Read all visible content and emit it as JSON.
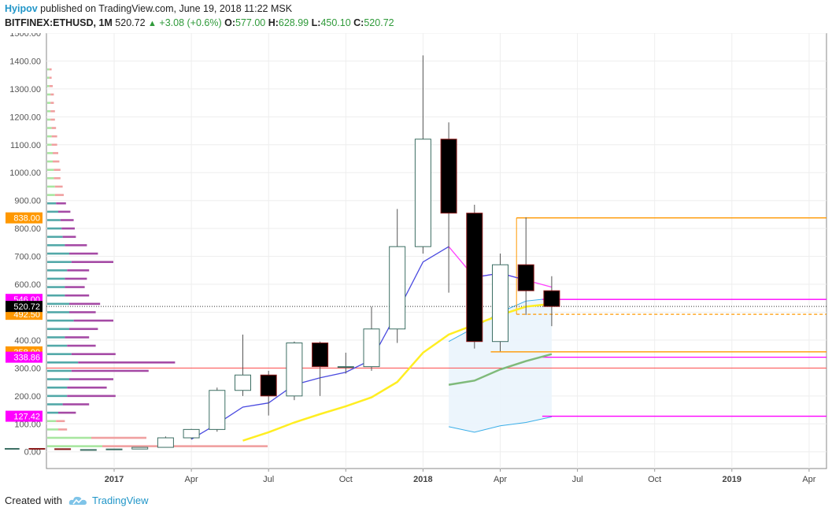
{
  "header": {
    "author": "Hyipov",
    "published": "published on TradingView.com, June 19, 2018 11:22 MSK",
    "symbol": "BITFINEX:ETHUSD, 1M",
    "last": "520.72",
    "change": "+3.08 (+0.6%)",
    "o_label": "O:",
    "o_value": "577.00",
    "h_label": "H:",
    "h_value": "628.99",
    "l_label": "L:",
    "l_value": "450.10",
    "c_label": "C:",
    "c_value": "520.72"
  },
  "footer": {
    "created_with": "Created with",
    "brand": "TradingView",
    "logo_icon": "tradingview-cloud-icon"
  },
  "colors": {
    "up_body": "#ffffff",
    "up_border": "#3c6e63",
    "down_body": "#000000",
    "down_border": "#8b1a1a",
    "ma_blue": "#4a4ae0",
    "ma_magenta": "#ff40ff",
    "ma_yellow": "#ffee22",
    "ma_green": "#7fba7a",
    "band_blue": "#3aaee8",
    "band_fill": "#eaf4fc",
    "level_orange": "#ff9800",
    "level_magenta": "#ff00ff",
    "level_red": "#ff4b4b",
    "vp_up": "#52a8a8",
    "vp_down": "#a54aa5",
    "vp_up_light": "#a8e6a0",
    "vp_down_light": "#f0a0a0"
  },
  "chart_data": {
    "type": "candlestick",
    "symbol": "BITFINEX:ETHUSD",
    "timeframe": "1M",
    "ylim": [
      -60,
      1500
    ],
    "y_ticks": [
      0,
      100,
      200,
      300,
      400,
      500,
      600,
      700,
      800,
      900,
      1000,
      1100,
      1200,
      1300,
      1400,
      1500
    ],
    "y_tick_labels": [
      "0.00",
      "100.00",
      "200.00",
      "300.00",
      "400.00",
      "500.00",
      "600.00",
      "700.00",
      "800.00",
      "900.00",
      "1000.00",
      "1100.00",
      "1200.00",
      "1300.00",
      "1400.00",
      "1500.00"
    ],
    "x_ticks": [
      {
        "label": "2017",
        "month": "2017-01",
        "bold": true
      },
      {
        "label": "Apr",
        "month": "2017-04",
        "bold": false
      },
      {
        "label": "Jul",
        "month": "2017-07",
        "bold": false
      },
      {
        "label": "Oct",
        "month": "2017-10",
        "bold": false
      },
      {
        "label": "2018",
        "month": "2018-01",
        "bold": true
      },
      {
        "label": "Apr",
        "month": "2018-04",
        "bold": false
      },
      {
        "label": "Jul",
        "month": "2018-07",
        "bold": false
      },
      {
        "label": "Oct",
        "month": "2018-10",
        "bold": false
      },
      {
        "label": "2019",
        "month": "2019-01",
        "bold": true
      },
      {
        "label": "Apr",
        "month": "2019-04",
        "bold": false
      }
    ],
    "candles": [
      {
        "month": "2016-06",
        "open": 12,
        "high": 14,
        "low": 10,
        "close": 12
      },
      {
        "month": "2016-07",
        "open": 12,
        "high": 14,
        "low": 10,
        "close": 11
      },
      {
        "month": "2016-08",
        "open": 11,
        "high": 13,
        "low": 9,
        "close": 10
      },
      {
        "month": "2016-09",
        "open": 10,
        "high": 13,
        "low": 9,
        "close": 12
      },
      {
        "month": "2016-10",
        "open": 12,
        "high": 13,
        "low": 10,
        "close": 11
      },
      {
        "month": "2016-11",
        "open": 11,
        "high": 12,
        "low": 8,
        "close": 8
      },
      {
        "month": "2016-12",
        "open": 8,
        "high": 9,
        "low": 6,
        "close": 8
      },
      {
        "month": "2017-01",
        "open": 8,
        "high": 11,
        "low": 8,
        "close": 10
      },
      {
        "month": "2017-02",
        "open": 10,
        "high": 16,
        "low": 10,
        "close": 16
      },
      {
        "month": "2017-03",
        "open": 16,
        "high": 55,
        "low": 15,
        "close": 50
      },
      {
        "month": "2017-04",
        "open": 50,
        "high": 82,
        "low": 45,
        "close": 80
      },
      {
        "month": "2017-05",
        "open": 80,
        "high": 230,
        "low": 72,
        "close": 220
      },
      {
        "month": "2017-06",
        "open": 220,
        "high": 420,
        "low": 200,
        "close": 275
      },
      {
        "month": "2017-07",
        "open": 275,
        "high": 290,
        "low": 130,
        "close": 200
      },
      {
        "month": "2017-08",
        "open": 200,
        "high": 395,
        "low": 185,
        "close": 390
      },
      {
        "month": "2017-09",
        "open": 390,
        "high": 395,
        "low": 200,
        "close": 305
      },
      {
        "month": "2017-10",
        "open": 305,
        "high": 355,
        "low": 280,
        "close": 305
      },
      {
        "month": "2017-11",
        "open": 305,
        "high": 520,
        "low": 290,
        "close": 440
      },
      {
        "month": "2017-12",
        "open": 440,
        "high": 870,
        "low": 390,
        "close": 735
      },
      {
        "month": "2018-01",
        "open": 735,
        "high": 1420,
        "low": 710,
        "close": 1120
      },
      {
        "month": "2018-02",
        "open": 1120,
        "high": 1180,
        "low": 570,
        "close": 855
      },
      {
        "month": "2018-03",
        "open": 855,
        "high": 885,
        "low": 370,
        "close": 395
      },
      {
        "month": "2018-04",
        "open": 395,
        "high": 710,
        "low": 360,
        "close": 670
      },
      {
        "month": "2018-05",
        "open": 670,
        "high": 840,
        "low": 490,
        "close": 577
      },
      {
        "month": "2018-06",
        "open": 577,
        "high": 628.99,
        "low": 450.1,
        "close": 520.72
      }
    ],
    "moving_averages": [
      {
        "color": "ma_blue",
        "points": [
          [
            "2017-04",
            45
          ],
          [
            "2017-05",
            100
          ],
          [
            "2017-06",
            160
          ],
          [
            "2017-07",
            175
          ],
          [
            "2017-08",
            240
          ],
          [
            "2017-09",
            265
          ],
          [
            "2017-10",
            285
          ],
          [
            "2017-11",
            330
          ],
          [
            "2017-12",
            500
          ],
          [
            "2018-01",
            680
          ],
          [
            "2018-02",
            735
          ]
        ]
      },
      {
        "color": "ma_magenta",
        "points": [
          [
            "2018-02",
            735
          ],
          [
            "2018-03",
            625
          ],
          [
            "2018-04",
            640
          ],
          [
            "2018-05",
            615
          ],
          [
            "2018-06",
            590
          ]
        ]
      },
      {
        "color": "ma_blue",
        "points": [
          [
            "2018-03",
            625
          ],
          [
            "2018-04",
            640
          ],
          [
            "2018-05",
            615
          ]
        ]
      },
      {
        "color": "ma_yellow",
        "width": 2.5,
        "points": [
          [
            "2017-06",
            40
          ],
          [
            "2017-07",
            70
          ],
          [
            "2017-08",
            105
          ],
          [
            "2017-09",
            135
          ],
          [
            "2017-10",
            163
          ],
          [
            "2017-11",
            195
          ],
          [
            "2017-12",
            250
          ],
          [
            "2018-01",
            355
          ],
          [
            "2018-02",
            420
          ],
          [
            "2018-03",
            455
          ],
          [
            "2018-04",
            490
          ],
          [
            "2018-05",
            520
          ],
          [
            "2018-06",
            530
          ]
        ]
      },
      {
        "color": "ma_green",
        "width": 2.5,
        "points": [
          [
            "2018-02",
            240
          ],
          [
            "2018-03",
            255
          ],
          [
            "2018-04",
            295
          ],
          [
            "2018-05",
            325
          ],
          [
            "2018-06",
            350
          ]
        ]
      }
    ],
    "band": {
      "upper": [
        [
          "2018-02",
          395
        ],
        [
          "2018-03",
          445
        ],
        [
          "2018-04",
          500
        ],
        [
          "2018-05",
          540
        ],
        [
          "2018-06",
          550
        ]
      ],
      "lower": [
        [
          "2018-02",
          90
        ],
        [
          "2018-03",
          70
        ],
        [
          "2018-04",
          93
        ],
        [
          "2018-05",
          105
        ],
        [
          "2018-06",
          125
        ]
      ]
    },
    "levels": [
      {
        "value": 838.0,
        "label": "838.00",
        "color": "level_orange",
        "style": "solid",
        "from": "2018-05"
      },
      {
        "value": 546.0,
        "label": "546.00",
        "color": "level_magenta",
        "style": "solid",
        "from": "2018-06"
      },
      {
        "value": 492.5,
        "label": "492.50",
        "color": "level_orange",
        "style": "dashed",
        "from": "2018-05"
      },
      {
        "value": 358.0,
        "label": "358.00",
        "color": "level_orange",
        "style": "solid",
        "from": "2018-04"
      },
      {
        "value": 338.86,
        "label": "338.86",
        "color": "level_magenta",
        "style": "solid",
        "from": "2018-06"
      },
      {
        "value": 300,
        "label": "",
        "color": "level_red",
        "style": "solid",
        "from": "start"
      },
      {
        "value": 127.42,
        "label": "127.42",
        "color": "level_magenta",
        "style": "solid",
        "from": "2018-06"
      }
    ],
    "last_price": {
      "value": 520.72,
      "label": "520.72"
    },
    "volume_profile": {
      "bins": [
        {
          "price": 1370,
          "up": 2,
          "down": 2
        },
        {
          "price": 1340,
          "up": 2,
          "down": 2
        },
        {
          "price": 1310,
          "up": 2,
          "down": 3
        },
        {
          "price": 1280,
          "up": 3,
          "down": 3
        },
        {
          "price": 1250,
          "up": 3,
          "down": 3
        },
        {
          "price": 1220,
          "up": 3,
          "down": 4
        },
        {
          "price": 1190,
          "up": 3,
          "down": 4
        },
        {
          "price": 1160,
          "up": 4,
          "down": 4
        },
        {
          "price": 1130,
          "up": 4,
          "down": 5
        },
        {
          "price": 1100,
          "up": 4,
          "down": 5
        },
        {
          "price": 1070,
          "up": 5,
          "down": 5
        },
        {
          "price": 1040,
          "up": 5,
          "down": 6
        },
        {
          "price": 1010,
          "up": 6,
          "down": 6
        },
        {
          "price": 980,
          "up": 6,
          "down": 6
        },
        {
          "price": 950,
          "up": 7,
          "down": 7
        },
        {
          "price": 920,
          "up": 7,
          "down": 8
        },
        {
          "price": 890,
          "up": 8,
          "down": 9
        },
        {
          "price": 860,
          "up": 10,
          "down": 11
        },
        {
          "price": 830,
          "up": 12,
          "down": 12
        },
        {
          "price": 800,
          "up": 13,
          "down": 12
        },
        {
          "price": 770,
          "up": 14,
          "down": 12
        },
        {
          "price": 740,
          "up": 16,
          "down": 20
        },
        {
          "price": 710,
          "up": 20,
          "down": 26
        },
        {
          "price": 680,
          "up": 22,
          "down": 38
        },
        {
          "price": 650,
          "up": 18,
          "down": 20
        },
        {
          "price": 620,
          "up": 16,
          "down": 20
        },
        {
          "price": 590,
          "up": 16,
          "down": 18
        },
        {
          "price": 560,
          "up": 16,
          "down": 22
        },
        {
          "price": 530,
          "up": 20,
          "down": 28
        },
        {
          "price": 500,
          "up": 20,
          "down": 24
        },
        {
          "price": 470,
          "up": 24,
          "down": 36
        },
        {
          "price": 440,
          "up": 20,
          "down": 26
        },
        {
          "price": 410,
          "up": 16,
          "down": 22
        },
        {
          "price": 380,
          "up": 18,
          "down": 26
        },
        {
          "price": 350,
          "up": 22,
          "down": 40
        },
        {
          "price": 320,
          "up": 28,
          "down": 88
        },
        {
          "price": 290,
          "up": 22,
          "down": 70
        },
        {
          "price": 260,
          "up": 20,
          "down": 40
        },
        {
          "price": 230,
          "up": 18,
          "down": 36
        },
        {
          "price": 200,
          "up": 18,
          "down": 44
        },
        {
          "price": 170,
          "up": 14,
          "down": 24
        },
        {
          "price": 140,
          "up": 10,
          "down": 16
        },
        {
          "price": 110,
          "up": 8,
          "down": 8
        },
        {
          "price": 80,
          "up": 10,
          "down": 8
        },
        {
          "price": 50,
          "up": 40,
          "down": 50
        },
        {
          "price": 20,
          "up": 50,
          "down": 150
        }
      ],
      "light_above": 900,
      "light_below": 120
    }
  }
}
